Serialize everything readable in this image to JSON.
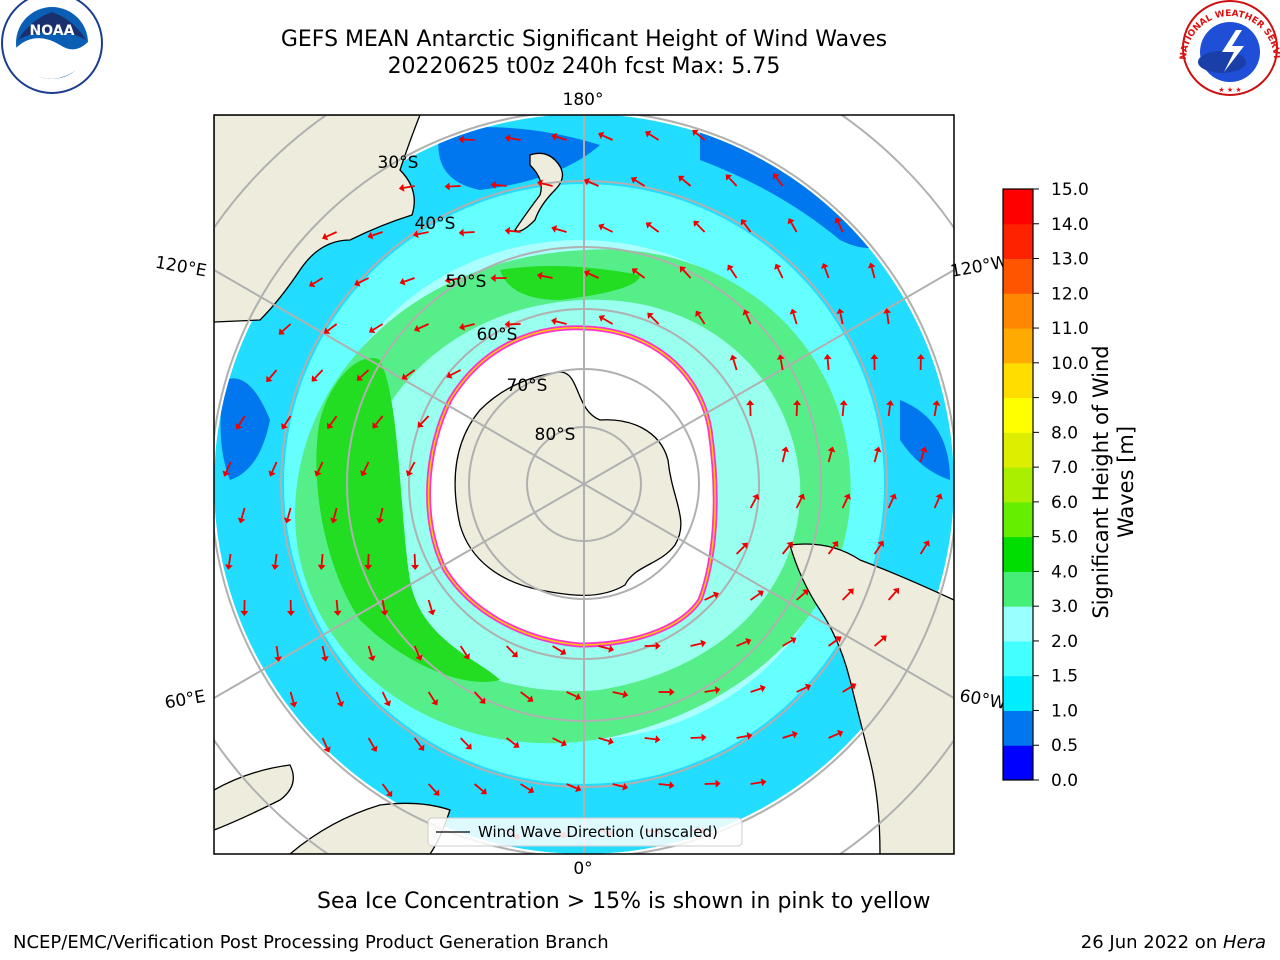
{
  "title": {
    "line1": "GEFS MEAN Antarctic Significant Height of Wind Waves",
    "line2": "20220625 t00z 240h fcst   Max: 5.75"
  },
  "map": {
    "projection": "south-polar-stereographic",
    "longitude_labels": [
      "180°",
      "120°E",
      "120°W",
      "60°E",
      "60°W",
      "0°"
    ],
    "latitude_labels": [
      "30°S",
      "40°S",
      "50°S",
      "60°S",
      "70°S",
      "80°S"
    ],
    "legend_label": "Wind Wave Direction (unscaled)",
    "land_color": "#eeecdc",
    "ice_color": "#ffffff",
    "ice_edge_colors": [
      "#ff33cc",
      "#ffcc00"
    ],
    "arrow_color": "#ee0000"
  },
  "colorbar": {
    "title_line1": "Significant Height of Wind",
    "title_line2": "Waves [m]",
    "ticks": [
      "0.0",
      "0.5",
      "1.0",
      "1.5",
      "2.0",
      "3.0",
      "4.0",
      "5.0",
      "6.0",
      "7.0",
      "8.0",
      "9.0",
      "10.0",
      "11.0",
      "12.0",
      "13.0",
      "14.0",
      "15.0"
    ],
    "colors": [
      "#0000ff",
      "#0077ee",
      "#00eeff",
      "#44ffff",
      "#99ffff",
      "#44ee77",
      "#00dd00",
      "#66ee00",
      "#aaee00",
      "#ddee00",
      "#ffff00",
      "#ffdd00",
      "#ffaa00",
      "#ff8800",
      "#ff5500",
      "#ff2200",
      "#ff0000"
    ]
  },
  "logos": {
    "noaa_text": "NOAA",
    "noaa_ring": "NATIONAL OCEANIC AND ATMOSPHERIC ADMINISTRATION · U.S. DEPARTMENT OF COMMERCE",
    "nws_ring": "NATIONAL WEATHER SERVICE"
  },
  "footer": {
    "note": "Sea Ice Concentration > 15% is shown in pink to yellow",
    "credit": "NCEP/EMC/Verification Post Processing Product Generation Branch",
    "date_prefix": "26 Jun 2022 on ",
    "machine": "Hera"
  }
}
